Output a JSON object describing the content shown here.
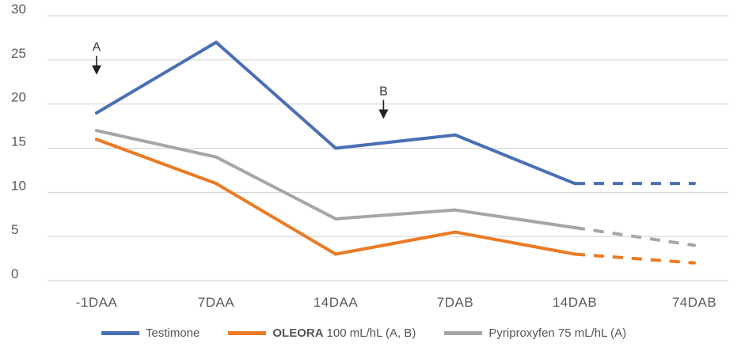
{
  "chart_data": {
    "type": "line",
    "categories": [
      "-1DAA",
      "7DAA",
      "14DAA",
      "7DAB",
      "14DAB",
      "74DAB"
    ],
    "ylim": [
      0,
      30
    ],
    "yticks": [
      "0",
      "5",
      "10",
      "15",
      "20",
      "25",
      "30"
    ],
    "grid": "horizontal",
    "legend_position": "bottom",
    "series": [
      {
        "name": "Testimone",
        "color": "#4a6fb5",
        "values": [
          19,
          27,
          15,
          16.5,
          11,
          11
        ],
        "dashed_from_index": 4
      },
      {
        "name_bold": "OLEORA",
        "name_rest": "100 mL/hL (A, B)",
        "color": "#ec7a24",
        "values": [
          16,
          11,
          3,
          5.5,
          3,
          2
        ],
        "dashed_from_index": 4
      },
      {
        "name": "Pyriproxyfen 75 mL/hL (A)",
        "color": "#a6a6a6",
        "values": [
          17,
          14,
          7,
          8,
          6,
          4
        ],
        "dashed_from_index": 4
      }
    ],
    "annotations": [
      {
        "label": "A",
        "category_index": 0,
        "y": 26
      },
      {
        "label": "B",
        "category_index": 2.4,
        "y": 21
      }
    ]
  }
}
